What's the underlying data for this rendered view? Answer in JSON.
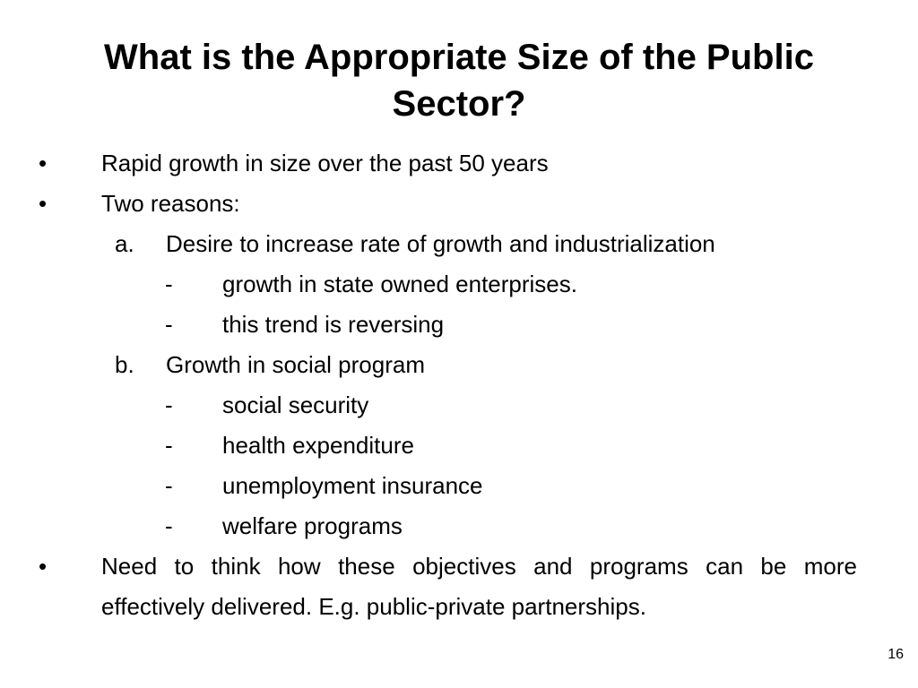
{
  "slide": {
    "title_line1": "What is the Appropriate Size of the Public",
    "title_line2": "Sector?",
    "items": [
      {
        "marker": "•",
        "text": "Rapid growth in size over the past 50 years"
      },
      {
        "marker": "•",
        "text": "Two reasons:"
      },
      {
        "marker": "a.",
        "text": "Desire to increase rate of growth and industrialization"
      },
      {
        "marker": "-",
        "text": "growth in state owned enterprises."
      },
      {
        "marker": "-",
        "text": "this trend is reversing"
      },
      {
        "marker": "b.",
        "text": "Growth in social program"
      },
      {
        "marker": "-",
        "text": "social security"
      },
      {
        "marker": "-",
        "text": "health expenditure"
      },
      {
        "marker": "-",
        "text": "unemployment insurance"
      },
      {
        "marker": "-",
        "text": "welfare programs"
      }
    ],
    "final_item": {
      "marker": "•",
      "text": "Need to think how these objectives and programs can be more effectively delivered. E.g. public-private partnerships."
    },
    "slide_number": "16"
  }
}
